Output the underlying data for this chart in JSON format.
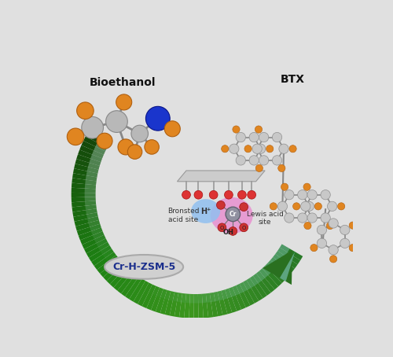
{
  "bg_color": "#e0e0e0",
  "catalyst_label": "Cr-H-ZSM-5",
  "catalyst_label_color": "#1a2e8c",
  "bronsted_label": "Bronsted\nacid site",
  "lewis_label": "Lewis acid\nsite",
  "bioethanol_label": "Bioethanol",
  "btx_label": "BTX",
  "orange_color": "#e08520",
  "gray_atom_color": "#b8b8b8",
  "blue_atom_color": "#1a35cc",
  "dark_green": "#1a5a10",
  "mid_green": "#3a9020",
  "light_green": "#60b840",
  "teal_color": "#80c8c0",
  "pink_color": "#e890d0",
  "light_blue_color": "#90c0f0",
  "red_o_color": "#dd3333",
  "surface_color": "#c8c8c8"
}
